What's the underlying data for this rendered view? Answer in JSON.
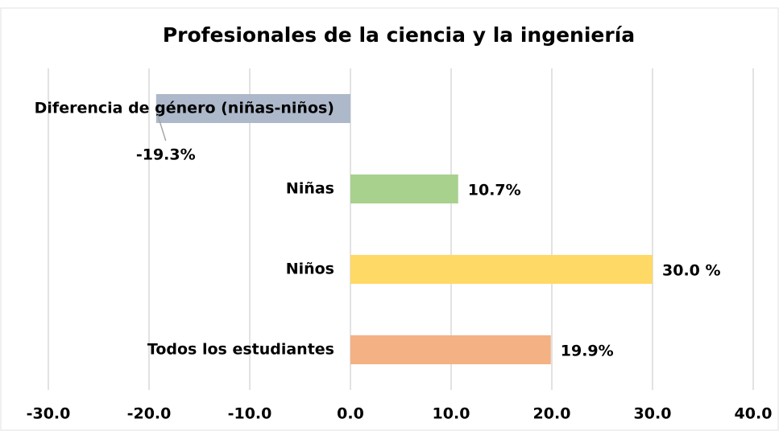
{
  "chart_data": {
    "type": "bar",
    "orientation": "horizontal",
    "title": "Profesionales de la ciencia y la ingeniería",
    "categories": [
      "Diferencia de género (niñas-niños)",
      "Niñas",
      "Niños",
      "Todos los estudiantes"
    ],
    "values": [
      -19.3,
      10.7,
      30.0,
      19.9
    ],
    "value_labels": [
      "-19.3%",
      "10.7%",
      "30.0 %",
      "19.9%"
    ],
    "colors": [
      "#adb9ca",
      "#a9d18e",
      "#ffd966",
      "#f4b183"
    ],
    "xlim": [
      -30,
      40
    ],
    "xticks": [
      {
        "value": -30,
        "label": "-30.0"
      },
      {
        "value": -20,
        "label": "-20.0"
      },
      {
        "value": -10,
        "label": "-10.0"
      },
      {
        "value": 0,
        "label": "0.0"
      },
      {
        "value": 10,
        "label": "10.0"
      },
      {
        "value": 20,
        "label": "20.0"
      },
      {
        "value": 30,
        "label": "30.0"
      },
      {
        "value": 40,
        "label": "40.0"
      }
    ],
    "grid": true
  }
}
